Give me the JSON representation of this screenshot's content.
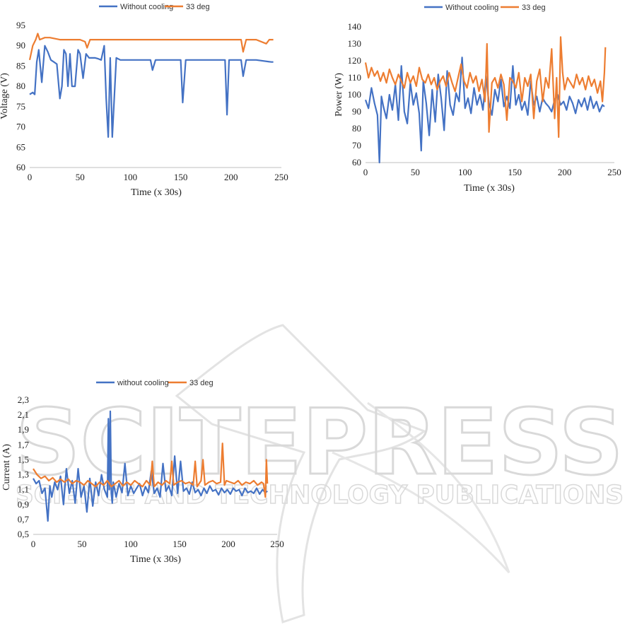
{
  "watermark": {
    "main": "SCITEPRESS",
    "sub": "SCIENCE AND TECHNOLOGY PUBLICATIONS"
  },
  "colors": {
    "blue": "#4472C4",
    "orange": "#ED7D31",
    "watermark": "#d9d9d9"
  },
  "chart_data": [
    {
      "id": "voltage",
      "type": "line",
      "xlabel": "Time (x 30s)",
      "ylabel": "Voltage (V)",
      "xlim": [
        0,
        250
      ],
      "ylim": [
        60,
        95
      ],
      "xticks": [
        "0",
        "50",
        "100",
        "150",
        "200",
        "250"
      ],
      "yticks": [
        "60",
        "65",
        "70",
        "75",
        "80",
        "85",
        "90",
        "95"
      ],
      "legend_position": "top",
      "series": [
        {
          "name": "Without cooling",
          "color": "#4472C4",
          "x": [
            0,
            3,
            5,
            7,
            9,
            12,
            15,
            18,
            21,
            24,
            27,
            30,
            32,
            34,
            36,
            38,
            40,
            42,
            45,
            48,
            50,
            53,
            56,
            59,
            62,
            65,
            68,
            71,
            74,
            76,
            78,
            80,
            82,
            86,
            90,
            95,
            100,
            110,
            120,
            122,
            125,
            140,
            145,
            150,
            152,
            155,
            160,
            190,
            194,
            196,
            198,
            210,
            212,
            215,
            225,
            240,
            242
          ],
          "y": [
            78,
            78.5,
            78,
            86,
            89,
            81,
            90,
            88.5,
            86.5,
            86,
            85.5,
            77,
            80,
            89,
            88,
            80,
            88,
            80,
            80,
            89,
            88,
            82,
            88,
            87,
            87,
            87,
            86.8,
            86.5,
            90,
            77,
            67.5,
            87,
            67.5,
            87,
            86.5,
            86.5,
            86.5,
            86.5,
            86.5,
            84,
            86.5,
            86.5,
            86.5,
            86.5,
            76,
            86.5,
            86.5,
            86.5,
            86.5,
            73,
            86.5,
            86.5,
            82.5,
            86.5,
            86.5,
            86,
            86
          ]
        },
        {
          "name": "33 deg",
          "color": "#ED7D31",
          "x": [
            0,
            3,
            6,
            8,
            10,
            15,
            20,
            30,
            40,
            50,
            55,
            57,
            60,
            70,
            80,
            90,
            100,
            120,
            140,
            160,
            180,
            200,
            210,
            212,
            215,
            225,
            235,
            238,
            240,
            242
          ],
          "y": [
            86.5,
            90,
            91.5,
            93,
            91.5,
            92,
            92,
            91.5,
            91.5,
            91.5,
            91,
            89.5,
            91.5,
            91.5,
            91.5,
            91.5,
            91.5,
            91.5,
            91.5,
            91.5,
            91.5,
            91.5,
            91.5,
            88.5,
            91.5,
            91.5,
            90.5,
            91.5,
            91.5,
            91.5
          ]
        }
      ]
    },
    {
      "id": "power",
      "type": "line",
      "xlabel": "Time (x 30s)",
      "ylabel": "Power (W)",
      "xlim": [
        0,
        250
      ],
      "ylim": [
        60,
        140
      ],
      "xticks": [
        "0",
        "50",
        "100",
        "150",
        "200",
        "250"
      ],
      "yticks": [
        "60",
        "70",
        "80",
        "90",
        "100",
        "110",
        "120",
        "130",
        "140"
      ],
      "legend_position": "top",
      "series": [
        {
          "name": "Without cooling",
          "color": "#4472C4",
          "x": [
            0,
            3,
            6,
            9,
            12,
            14,
            16,
            18,
            21,
            24,
            27,
            30,
            33,
            36,
            39,
            42,
            45,
            48,
            51,
            54,
            56,
            58,
            61,
            64,
            67,
            70,
            73,
            76,
            79,
            82,
            85,
            88,
            91,
            94,
            97,
            100,
            103,
            106,
            109,
            112,
            115,
            118,
            121,
            124,
            127,
            130,
            133,
            136,
            139,
            142,
            145,
            148,
            151,
            154,
            157,
            160,
            163,
            166,
            169,
            172,
            175,
            178,
            181,
            184,
            187,
            190,
            193,
            196,
            199,
            202,
            205,
            208,
            211,
            214,
            217,
            220,
            223,
            226,
            229,
            232,
            235,
            238,
            240
          ],
          "y": [
            97,
            92,
            104,
            95,
            88,
            60,
            99,
            93,
            86,
            100,
            91,
            106,
            85,
            117,
            90,
            83,
            107,
            94,
            101,
            89,
            67,
            108,
            95,
            76,
            103,
            84,
            112,
            98,
            79,
            114,
            94,
            88,
            101,
            96,
            122,
            92,
            98,
            89,
            104,
            94,
            100,
            91,
            111,
            95,
            88,
            103,
            96,
            109,
            93,
            99,
            92,
            117,
            94,
            100,
            91,
            96,
            88,
            108,
            94,
            99,
            90,
            98,
            95,
            93,
            90,
            97,
            100,
            94,
            96,
            91,
            99,
            95,
            89,
            97,
            93,
            98,
            91,
            99,
            92,
            96,
            90,
            94,
            93
          ]
        },
        {
          "name": "33 deg",
          "color": "#ED7D31",
          "x": [
            0,
            3,
            6,
            9,
            12,
            15,
            18,
            21,
            24,
            27,
            30,
            33,
            36,
            39,
            42,
            45,
            48,
            51,
            54,
            57,
            60,
            63,
            66,
            69,
            72,
            75,
            78,
            81,
            84,
            87,
            90,
            93,
            96,
            99,
            102,
            105,
            108,
            111,
            114,
            117,
            120,
            122,
            124,
            127,
            130,
            133,
            136,
            139,
            142,
            145,
            148,
            151,
            154,
            157,
            160,
            163,
            166,
            169,
            172,
            175,
            178,
            181,
            184,
            187,
            190,
            192,
            194,
            196,
            198,
            200,
            203,
            206,
            209,
            212,
            215,
            218,
            221,
            224,
            227,
            230,
            233,
            236,
            238,
            240,
            241
          ],
          "y": [
            119,
            110,
            116,
            111,
            114,
            108,
            113,
            107,
            115,
            110,
            106,
            112,
            108,
            104,
            113,
            107,
            111,
            105,
            116,
            109,
            107,
            112,
            106,
            110,
            103,
            108,
            111,
            105,
            113,
            107,
            102,
            110,
            118,
            108,
            104,
            113,
            107,
            111,
            102,
            109,
            96,
            130,
            78,
            107,
            110,
            104,
            112,
            106,
            85,
            110,
            108,
            104,
            113,
            96,
            110,
            105,
            112,
            86,
            108,
            115,
            96,
            110,
            104,
            127,
            86,
            110,
            75,
            134,
            113,
            103,
            110,
            107,
            104,
            112,
            106,
            110,
            103,
            111,
            105,
            109,
            101,
            108,
            96,
            113,
            128
          ]
        }
      ]
    },
    {
      "id": "current",
      "type": "line",
      "xlabel": "Time (x 30s)",
      "ylabel": "Current (A)",
      "xlim": [
        0,
        250
      ],
      "ylim": [
        0.5,
        2.3
      ],
      "xticks": [
        "0",
        "50",
        "100",
        "150",
        "200",
        "250"
      ],
      "yticks": [
        "0,5",
        "0,7",
        "0,9",
        "1,1",
        "1,3",
        "1,5",
        "1,7",
        "1,9",
        "2,1",
        "2,3"
      ],
      "legend_position": "top",
      "series": [
        {
          "name": "without cooling",
          "color": "#4472C4",
          "x": [
            0,
            3,
            6,
            9,
            12,
            15,
            17,
            19,
            22,
            25,
            28,
            31,
            34,
            37,
            40,
            43,
            46,
            49,
            52,
            55,
            58,
            61,
            64,
            67,
            70,
            73,
            76,
            77,
            78,
            79,
            80,
            81,
            82,
            85,
            88,
            91,
            94,
            97,
            100,
            103,
            106,
            109,
            112,
            115,
            118,
            121,
            124,
            127,
            130,
            133,
            136,
            139,
            142,
            145,
            148,
            151,
            154,
            157,
            160,
            163,
            166,
            169,
            172,
            175,
            178,
            181,
            184,
            187,
            190,
            193,
            196,
            199,
            202,
            205,
            208,
            211,
            214,
            217,
            220,
            223,
            226,
            229,
            232,
            235,
            238,
            240
          ],
          "y": [
            1.25,
            1.18,
            1.22,
            1.05,
            1.12,
            0.68,
            1.15,
            1.0,
            1.2,
            1.1,
            1.28,
            0.9,
            1.38,
            1.05,
            1.22,
            0.92,
            1.38,
            1.0,
            1.15,
            0.8,
            1.25,
            0.88,
            1.2,
            1.02,
            1.3,
            1.1,
            1.0,
            2.05,
            1.1,
            2.15,
            1.05,
            0.92,
            1.2,
            1.0,
            1.18,
            1.06,
            1.45,
            1.02,
            1.15,
            1.05,
            1.12,
            1.18,
            1.02,
            1.14,
            1.06,
            1.35,
            1.05,
            1.12,
            1.0,
            1.45,
            1.08,
            1.15,
            1.02,
            1.55,
            1.05,
            1.48,
            1.08,
            1.12,
            1.04,
            1.2,
            1.06,
            1.1,
            1.02,
            1.12,
            1.05,
            1.15,
            1.08,
            1.1,
            1.03,
            1.12,
            1.06,
            1.1,
            1.04,
            1.12,
            1.08,
            1.1,
            1.02,
            1.12,
            1.06,
            1.08,
            1.05,
            1.12,
            1.04,
            1.1,
            1.06,
            1.08
          ]
        },
        {
          "name": "33 deg",
          "color": "#ED7D31",
          "x": [
            0,
            4,
            8,
            12,
            16,
            20,
            24,
            28,
            32,
            36,
            40,
            44,
            48,
            52,
            56,
            60,
            64,
            68,
            72,
            76,
            80,
            84,
            88,
            92,
            96,
            100,
            104,
            108,
            112,
            116,
            120,
            122,
            124,
            128,
            132,
            136,
            140,
            142,
            144,
            148,
            152,
            156,
            160,
            164,
            166,
            168,
            172,
            174,
            176,
            180,
            184,
            188,
            192,
            194,
            196,
            198,
            202,
            206,
            210,
            214,
            218,
            222,
            226,
            230,
            234,
            236,
            238,
            239,
            240
          ],
          "y": [
            1.38,
            1.3,
            1.25,
            1.28,
            1.22,
            1.26,
            1.2,
            1.24,
            1.2,
            1.24,
            1.18,
            1.22,
            1.2,
            1.16,
            1.22,
            1.18,
            1.14,
            1.2,
            1.16,
            1.22,
            1.14,
            1.18,
            1.22,
            1.15,
            1.2,
            1.16,
            1.22,
            1.18,
            1.14,
            1.22,
            1.16,
            1.48,
            1.14,
            1.2,
            1.16,
            1.22,
            1.18,
            1.48,
            1.16,
            1.2,
            1.22,
            1.18,
            1.2,
            1.16,
            1.48,
            1.14,
            1.22,
            1.5,
            1.16,
            1.2,
            1.22,
            1.18,
            1.2,
            1.72,
            1.16,
            1.22,
            1.2,
            1.18,
            1.22,
            1.16,
            1.2,
            1.18,
            1.22,
            1.16,
            1.2,
            1.18,
            1.0,
            1.5,
            1.18
          ]
        }
      ]
    }
  ]
}
